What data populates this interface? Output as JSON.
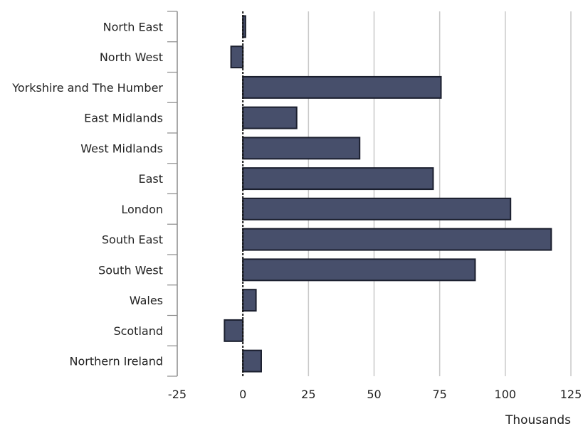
{
  "chart_data": {
    "type": "bar",
    "orientation": "horizontal",
    "categories": [
      "North East",
      "North West",
      "Yorkshire and The Humber",
      "East Midlands",
      "West Midlands",
      "East",
      "London",
      "South East",
      "South West",
      "Wales",
      "Scotland",
      "Northern Ireland"
    ],
    "values": [
      1,
      -4.5,
      75.5,
      20.5,
      44.5,
      72.5,
      102,
      117.5,
      88.5,
      5,
      -7,
      7
    ],
    "xlim": [
      -25,
      125
    ],
    "xticks": [
      -25,
      0,
      25,
      50,
      75,
      100,
      125
    ],
    "xtick_labels": [
      "-25",
      "0",
      "25",
      "50",
      "75",
      "100",
      "125"
    ],
    "xlabel": "Thousands",
    "ylabel": "",
    "title": "",
    "grid": "vertical",
    "legend": "none",
    "bar_color": "#474f6b",
    "bar_edge_color": "#1b1f2e",
    "grid_color": "#c8c8c8",
    "axis_color": "#8c8c8c",
    "zero_line_color": "#111111"
  }
}
